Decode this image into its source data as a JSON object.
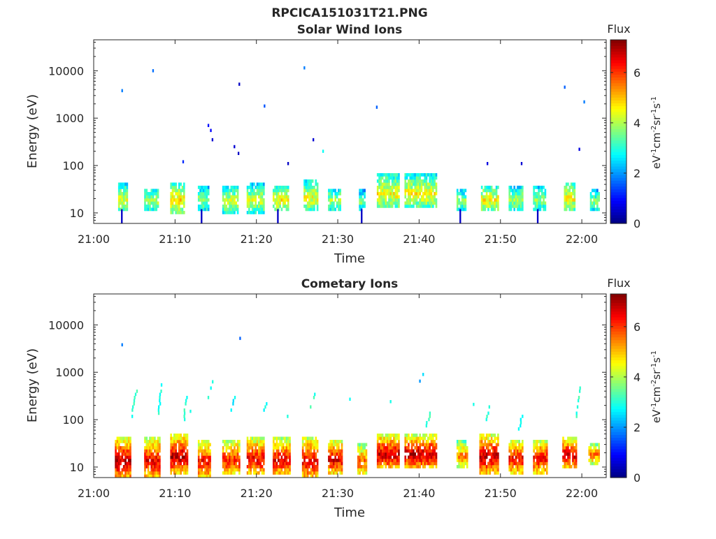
{
  "figure_title": "RPCICA151031T21.PNG",
  "colorbar": {
    "title": "Flux",
    "unit_label": "eV-1cm-2sr-1s-1",
    "ticks": [
      "0",
      "2",
      "4",
      "6"
    ],
    "range": [
      0,
      7.3
    ],
    "colormap": "jet"
  },
  "chart_data": [
    {
      "type": "heatmap",
      "title": "Solar Wind Ions",
      "xlabel": "Time",
      "ylabel": "Energy (eV)",
      "x_ticks": [
        "21:00",
        "21:10",
        "21:20",
        "21:30",
        "21:40",
        "21:50",
        "22:00"
      ],
      "x_range_minutes": [
        0,
        63
      ],
      "y_ticks": [
        "10",
        "100",
        "1000",
        "10000"
      ],
      "y_scale": "log",
      "y_range_eV": [
        6,
        45000
      ],
      "bursts": [
        {
          "t0": 3.0,
          "t1": 4.2,
          "emin": 12,
          "emax": 40,
          "peak": 4.3
        },
        {
          "t0": 6.2,
          "t1": 8.0,
          "emin": 12,
          "emax": 32,
          "peak": 4.0
        },
        {
          "t0": 9.4,
          "t1": 11.1,
          "emin": 11,
          "emax": 42,
          "peak": 4.8
        },
        {
          "t0": 12.8,
          "t1": 14.0,
          "emin": 12,
          "emax": 35,
          "peak": 3.8
        },
        {
          "t0": 15.8,
          "t1": 17.6,
          "emin": 11,
          "emax": 35,
          "peak": 4.2
        },
        {
          "t0": 18.8,
          "t1": 20.8,
          "emin": 11,
          "emax": 38,
          "peak": 4.3
        },
        {
          "t0": 22.0,
          "t1": 23.8,
          "emin": 12,
          "emax": 36,
          "peak": 4.6
        },
        {
          "t0": 25.8,
          "t1": 27.4,
          "emin": 12,
          "emax": 45,
          "peak": 4.5
        },
        {
          "t0": 28.8,
          "t1": 30.2,
          "emin": 12,
          "emax": 32,
          "peak": 4.0
        },
        {
          "t0": 32.6,
          "t1": 33.4,
          "emin": 12,
          "emax": 28,
          "peak": 3.5
        },
        {
          "t0": 34.8,
          "t1": 37.6,
          "emin": 14,
          "emax": 60,
          "peak": 4.6
        },
        {
          "t0": 38.2,
          "t1": 42.2,
          "emin": 14,
          "emax": 60,
          "peak": 4.6
        },
        {
          "t0": 44.6,
          "t1": 45.8,
          "emin": 12,
          "emax": 30,
          "peak": 3.8
        },
        {
          "t0": 47.6,
          "t1": 49.8,
          "emin": 12,
          "emax": 35,
          "peak": 4.7
        },
        {
          "t0": 51.0,
          "t1": 52.8,
          "emin": 12,
          "emax": 35,
          "peak": 4.0
        },
        {
          "t0": 54.0,
          "t1": 55.6,
          "emin": 12,
          "emax": 35,
          "peak": 3.8
        },
        {
          "t0": 57.8,
          "t1": 59.2,
          "emin": 12,
          "emax": 42,
          "peak": 4.6
        },
        {
          "t0": 61.0,
          "t1": 62.2,
          "emin": 12,
          "emax": 30,
          "peak": 3.6
        }
      ],
      "isolated_points": [
        {
          "t": 3.4,
          "e": 3800,
          "v": 1.8
        },
        {
          "t": 7.2,
          "e": 10000,
          "v": 1.7
        },
        {
          "t": 10.9,
          "e": 120,
          "v": 1.2
        },
        {
          "t": 14.0,
          "e": 700,
          "v": 1.0
        },
        {
          "t": 14.3,
          "e": 550,
          "v": 0.9
        },
        {
          "t": 14.5,
          "e": 350,
          "v": 0.6
        },
        {
          "t": 17.2,
          "e": 250,
          "v": 0.6
        },
        {
          "t": 17.7,
          "e": 180,
          "v": 0.5
        },
        {
          "t": 17.8,
          "e": 5200,
          "v": 0.5
        },
        {
          "t": 20.9,
          "e": 1800,
          "v": 1.5
        },
        {
          "t": 23.8,
          "e": 110,
          "v": 0.5
        },
        {
          "t": 25.8,
          "e": 11500,
          "v": 1.8
        },
        {
          "t": 26.9,
          "e": 350,
          "v": 0.6
        },
        {
          "t": 28.1,
          "e": 200,
          "v": 2.8
        },
        {
          "t": 34.7,
          "e": 1700,
          "v": 1.6
        },
        {
          "t": 48.3,
          "e": 110,
          "v": 0.7
        },
        {
          "t": 52.5,
          "e": 110,
          "v": 0.6
        },
        {
          "t": 57.8,
          "e": 4500,
          "v": 1.6
        },
        {
          "t": 59.6,
          "e": 220,
          "v": 0.7
        },
        {
          "t": 60.2,
          "e": 2200,
          "v": 1.8
        }
      ]
    },
    {
      "type": "heatmap",
      "title": "Cometary Ions",
      "xlabel": "Time",
      "ylabel": "Energy (eV)",
      "x_ticks": [
        "21:00",
        "21:10",
        "21:20",
        "21:30",
        "21:40",
        "21:50",
        "22:00"
      ],
      "x_range_minutes": [
        0,
        63
      ],
      "y_ticks": [
        "10",
        "100",
        "1000",
        "10000"
      ],
      "y_scale": "log",
      "y_range_eV": [
        6,
        45000
      ],
      "bursts": [
        {
          "t0": 2.6,
          "t1": 4.6,
          "emin": 6,
          "emax": 40,
          "peak": 6.9
        },
        {
          "t0": 6.2,
          "t1": 8.2,
          "emin": 6,
          "emax": 40,
          "peak": 6.6
        },
        {
          "t0": 9.4,
          "t1": 11.4,
          "emin": 8,
          "emax": 45,
          "peak": 6.9
        },
        {
          "t0": 12.8,
          "t1": 14.2,
          "emin": 6,
          "emax": 35,
          "peak": 6.4
        },
        {
          "t0": 15.8,
          "t1": 17.8,
          "emin": 7,
          "emax": 35,
          "peak": 6.3
        },
        {
          "t0": 18.8,
          "t1": 20.8,
          "emin": 7,
          "emax": 40,
          "peak": 6.5
        },
        {
          "t0": 22.0,
          "t1": 24.0,
          "emin": 7,
          "emax": 38,
          "peak": 6.6
        },
        {
          "t0": 25.6,
          "t1": 27.4,
          "emin": 6,
          "emax": 40,
          "peak": 6.6
        },
        {
          "t0": 28.8,
          "t1": 30.4,
          "emin": 8,
          "emax": 35,
          "peak": 6.7
        },
        {
          "t0": 32.4,
          "t1": 33.6,
          "emin": 7,
          "emax": 30,
          "peak": 5.8
        },
        {
          "t0": 34.8,
          "t1": 37.6,
          "emin": 10,
          "emax": 45,
          "peak": 6.9
        },
        {
          "t0": 38.2,
          "t1": 42.2,
          "emin": 10,
          "emax": 45,
          "peak": 6.9
        },
        {
          "t0": 44.6,
          "t1": 46.0,
          "emin": 10,
          "emax": 35,
          "peak": 5.5
        },
        {
          "t0": 47.4,
          "t1": 49.8,
          "emin": 8,
          "emax": 45,
          "peak": 6.9
        },
        {
          "t0": 51.0,
          "t1": 52.8,
          "emin": 8,
          "emax": 35,
          "peak": 6.5
        },
        {
          "t0": 54.0,
          "t1": 55.8,
          "emin": 8,
          "emax": 35,
          "peak": 6.5
        },
        {
          "t0": 57.6,
          "t1": 59.4,
          "emin": 10,
          "emax": 40,
          "peak": 6.8
        },
        {
          "t0": 60.8,
          "t1": 62.2,
          "emin": 12,
          "emax": 32,
          "peak": 5.6
        }
      ],
      "streaks": [
        {
          "t0": 4.6,
          "t1": 5.2,
          "emin": 110,
          "emax": 380,
          "v": 3.0
        },
        {
          "t0": 7.9,
          "t1": 8.3,
          "emin": 130,
          "emax": 650,
          "v": 3.0
        },
        {
          "t0": 11.0,
          "t1": 11.5,
          "emin": 100,
          "emax": 380,
          "v": 3.0
        },
        {
          "t0": 14.0,
          "t1": 14.6,
          "emin": 300,
          "emax": 600,
          "v": 3.0
        },
        {
          "t0": 16.9,
          "t1": 17.3,
          "emin": 150,
          "emax": 300,
          "v": 2.6
        },
        {
          "t0": 20.9,
          "t1": 21.2,
          "emin": 150,
          "emax": 230,
          "v": 2.8
        },
        {
          "t0": 23.5,
          "t1": 23.9,
          "emin": 70,
          "emax": 140,
          "v": 2.8
        },
        {
          "t0": 26.6,
          "t1": 27.3,
          "emin": 180,
          "emax": 420,
          "v": 3.1
        },
        {
          "t0": 40.8,
          "t1": 41.3,
          "emin": 70,
          "emax": 130,
          "v": 3.1
        },
        {
          "t0": 48.0,
          "t1": 48.6,
          "emin": 70,
          "emax": 180,
          "v": 3.1
        },
        {
          "t0": 52.2,
          "t1": 52.6,
          "emin": 60,
          "emax": 120,
          "v": 2.9
        },
        {
          "t0": 59.2,
          "t1": 59.8,
          "emin": 100,
          "emax": 500,
          "v": 3.1
        }
      ],
      "isolated_points": [
        {
          "t": 3.4,
          "e": 3800,
          "v": 1.8
        },
        {
          "t": 17.9,
          "e": 5200,
          "v": 1.6
        },
        {
          "t": 31.4,
          "e": 270,
          "v": 2.8
        },
        {
          "t": 36.4,
          "e": 240,
          "v": 2.9
        },
        {
          "t": 40.0,
          "e": 650,
          "v": 2.0
        },
        {
          "t": 40.4,
          "e": 900,
          "v": 2.5
        },
        {
          "t": 46.6,
          "e": 210,
          "v": 2.9
        },
        {
          "t": 11.8,
          "e": 150,
          "v": 2.9
        }
      ]
    }
  ]
}
